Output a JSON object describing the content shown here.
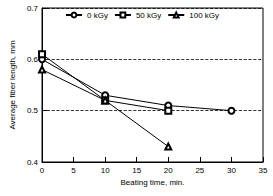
{
  "chart_data": {
    "type": "line",
    "x_label": "Beating time, min.",
    "y_label": "Average fiber length, mm",
    "xlim": [
      0,
      35
    ],
    "xticks": [
      0,
      5,
      10,
      15,
      20,
      25,
      30,
      35
    ],
    "ylim": [
      0.4,
      0.7
    ],
    "yticks": [
      0.4,
      0.5,
      0.6,
      0.7
    ],
    "grid": true,
    "legend": "top",
    "series": [
      {
        "name": "0 kGy",
        "color": "#000000",
        "marker": "circle",
        "x": [
          0,
          10,
          20,
          30
        ],
        "values": [
          0.6,
          0.53,
          0.51,
          0.5
        ]
      },
      {
        "name": "50 kGy",
        "color": "#000000",
        "marker": "square",
        "x": [
          0,
          10,
          20
        ],
        "values": [
          0.61,
          0.52,
          0.5
        ]
      },
      {
        "name": "100 kGy",
        "color": "#000000",
        "marker": "triangle",
        "x": [
          0,
          10,
          20
        ],
        "values": [
          0.58,
          0.52,
          0.43
        ]
      }
    ]
  }
}
